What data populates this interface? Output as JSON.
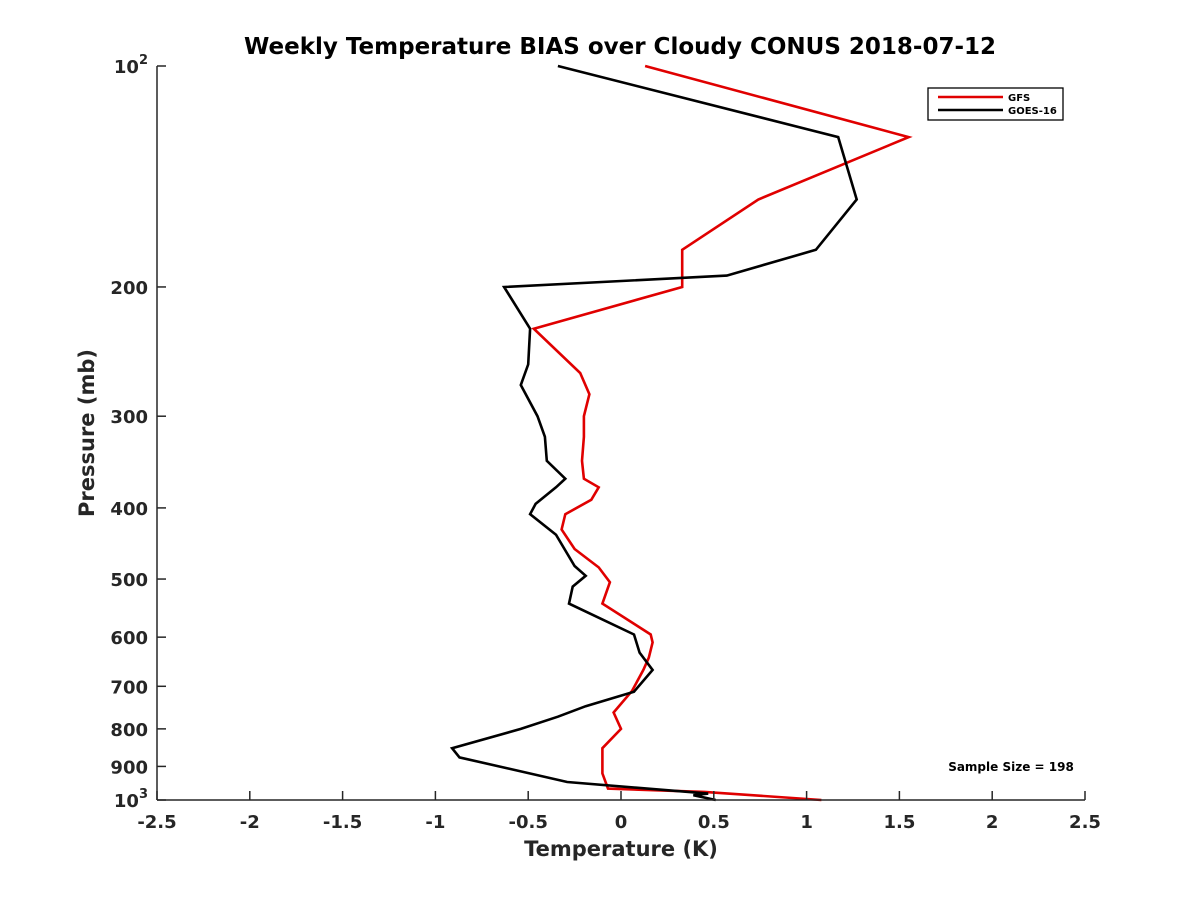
{
  "chart_data": {
    "type": "line",
    "title": "Weekly Temperature BIAS over Cloudy CONUS 2018-07-12",
    "xlabel": "Temperature (K)",
    "ylabel": "Pressure (mb)",
    "xlim": [
      -2.5,
      2.5
    ],
    "ylim": [
      100,
      1000
    ],
    "y_scale": "log",
    "y_reversed": true,
    "x_ticks": [
      "-2.5",
      "-2",
      "-1.5",
      "-1",
      "-0.5",
      "0",
      "0.5",
      "1",
      "1.5",
      "2",
      "2.5"
    ],
    "x_tick_values": [
      -2.5,
      -2,
      -1.5,
      -1,
      -0.5,
      0,
      0.5,
      1,
      1.5,
      2,
      2.5
    ],
    "y_ticks": [
      {
        "value": 100,
        "base": "10",
        "exp": "2"
      },
      {
        "value": 200,
        "label": "200"
      },
      {
        "value": 300,
        "label": "300"
      },
      {
        "value": 400,
        "label": "400"
      },
      {
        "value": 500,
        "label": "500"
      },
      {
        "value": 600,
        "label": "600"
      },
      {
        "value": 700,
        "label": "700"
      },
      {
        "value": 800,
        "label": "800"
      },
      {
        "value": 900,
        "label": "900"
      },
      {
        "value": 1000,
        "base": "10",
        "exp": "3"
      }
    ],
    "grid": false,
    "legend_position": "top-right",
    "annotation": "Sample Size = 198",
    "series": [
      {
        "name": "GFS",
        "color": "#e00000",
        "points": [
          [
            0.13,
            100
          ],
          [
            1.55,
            125
          ],
          [
            0.74,
            152
          ],
          [
            0.33,
            178
          ],
          [
            0.33,
            200
          ],
          [
            -0.47,
            228
          ],
          [
            -0.22,
            262
          ],
          [
            -0.17,
            280
          ],
          [
            -0.2,
            300
          ],
          [
            -0.2,
            320
          ],
          [
            -0.21,
            345
          ],
          [
            -0.2,
            365
          ],
          [
            -0.12,
            375
          ],
          [
            -0.16,
            390
          ],
          [
            -0.3,
            408
          ],
          [
            -0.32,
            428
          ],
          [
            -0.25,
            455
          ],
          [
            -0.12,
            482
          ],
          [
            -0.06,
            505
          ],
          [
            -0.1,
            540
          ],
          [
            0.16,
            595
          ],
          [
            0.17,
            610
          ],
          [
            0.15,
            640
          ],
          [
            0.12,
            665
          ],
          [
            0.06,
            710
          ],
          [
            -0.04,
            760
          ],
          [
            0.0,
            800
          ],
          [
            -0.1,
            850
          ],
          [
            -0.1,
            920
          ],
          [
            -0.07,
            965
          ],
          [
            0.45,
            975
          ],
          [
            1.08,
            1000
          ]
        ]
      },
      {
        "name": "GOES-16",
        "color": "#000000",
        "points": [
          [
            -0.34,
            100
          ],
          [
            1.17,
            125
          ],
          [
            1.27,
            152
          ],
          [
            1.05,
            178
          ],
          [
            0.57,
            193
          ],
          [
            -0.63,
            200
          ],
          [
            -0.49,
            228
          ],
          [
            -0.5,
            255
          ],
          [
            -0.54,
            272
          ],
          [
            -0.45,
            300
          ],
          [
            -0.41,
            320
          ],
          [
            -0.4,
            345
          ],
          [
            -0.3,
            365
          ],
          [
            -0.35,
            375
          ],
          [
            -0.46,
            395
          ],
          [
            -0.49,
            408
          ],
          [
            -0.35,
            435
          ],
          [
            -0.25,
            480
          ],
          [
            -0.19,
            495
          ],
          [
            -0.26,
            512
          ],
          [
            -0.28,
            540
          ],
          [
            0.07,
            595
          ],
          [
            0.1,
            630
          ],
          [
            0.17,
            665
          ],
          [
            0.07,
            712
          ],
          [
            -0.19,
            745
          ],
          [
            -0.34,
            770
          ],
          [
            -0.54,
            800
          ],
          [
            -0.91,
            850
          ],
          [
            -0.87,
            875
          ],
          [
            -0.29,
            945
          ],
          [
            0.47,
            980
          ],
          [
            0.39,
            985
          ],
          [
            0.51,
            1000
          ]
        ]
      }
    ]
  }
}
